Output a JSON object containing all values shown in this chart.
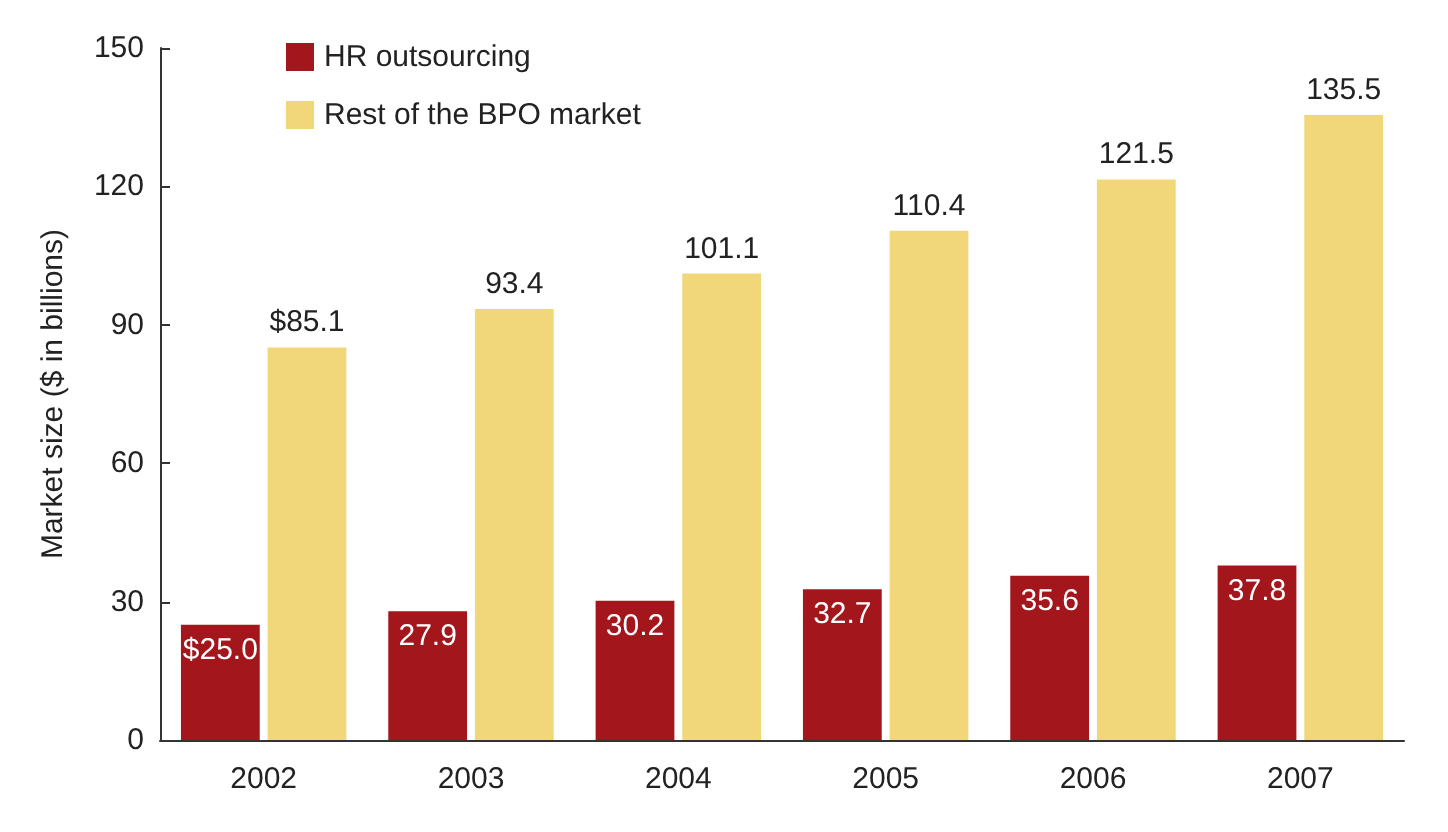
{
  "chart_data": {
    "type": "bar",
    "ylabel": "Market size ($ in billions)",
    "categories": [
      "2002",
      "2003",
      "2004",
      "2005",
      "2006",
      "2007"
    ],
    "series": [
      {
        "name": "HR outsourcing",
        "color": "#a3161c",
        "values": [
          25.0,
          27.9,
          30.2,
          32.7,
          35.6,
          37.8
        ],
        "value_labels": [
          "$25.0",
          "27.9",
          "30.2",
          "32.7",
          "35.6",
          "37.8"
        ]
      },
      {
        "name": "Rest of the BPO market",
        "color": "#f2d77a",
        "values": [
          85.1,
          93.4,
          101.1,
          110.4,
          121.5,
          135.5
        ],
        "value_labels": [
          "$85.1",
          "93.4",
          "101.1",
          "110.4",
          "121.5",
          "135.5"
        ]
      }
    ],
    "ylim": [
      0,
      150
    ],
    "yticks": [
      0,
      30,
      60,
      90,
      120,
      150
    ],
    "grid": false,
    "legend": "top left"
  }
}
